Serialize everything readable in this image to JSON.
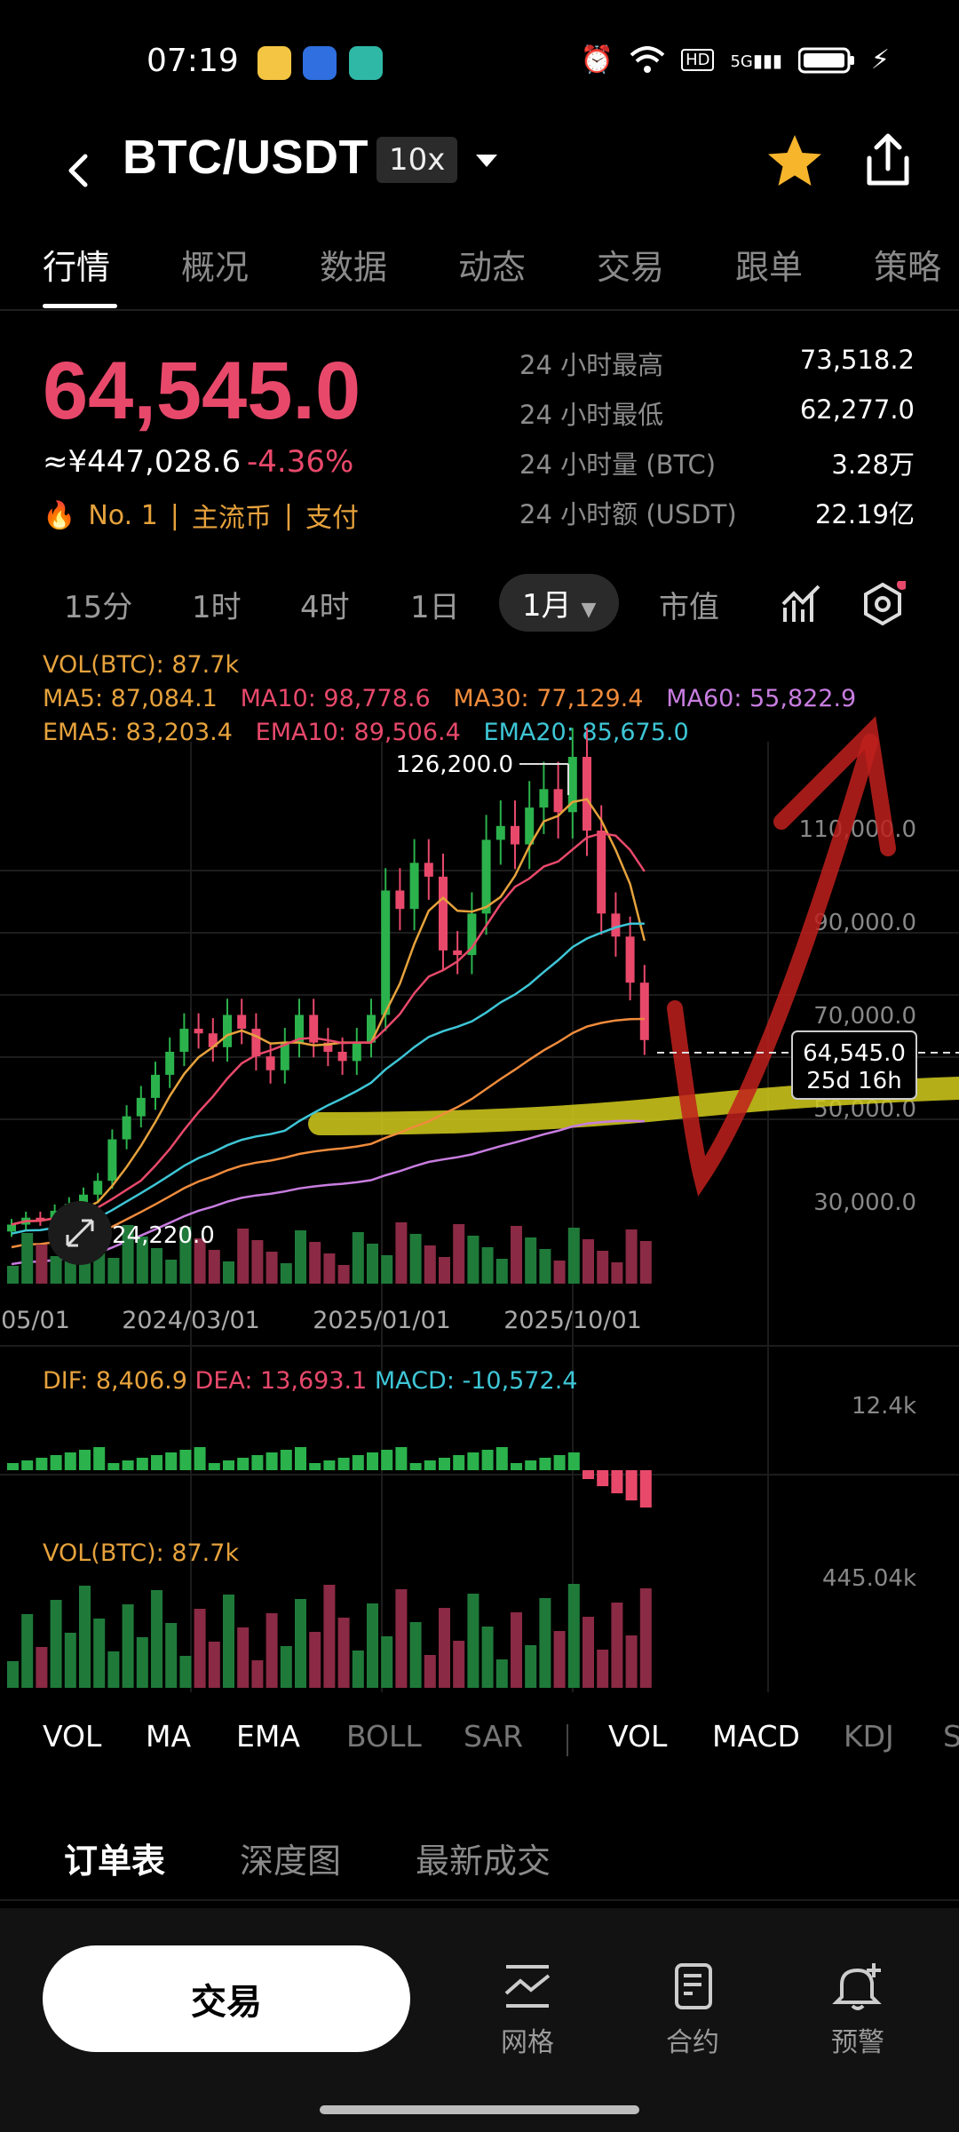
{
  "status_bar": {
    "time": "07:19",
    "network": "5G",
    "hd": "HD"
  },
  "header": {
    "pair": "BTC/USDT",
    "leverage": "10x"
  },
  "tabs": [
    "行情",
    "概况",
    "数据",
    "动态",
    "交易",
    "跟单",
    "策略"
  ],
  "ticker": {
    "last_price": "64,545.0",
    "cny": "≈¥447,028.6",
    "change": "-4.36%",
    "tags": [
      "No. 1",
      "主流币",
      "支付"
    ],
    "stats": [
      {
        "label": "24 小时最高",
        "value": "73,518.2"
      },
      {
        "label": "24 小时最低",
        "value": "62,277.0"
      },
      {
        "label": "24 小时量 (BTC)",
        "value": "3.28万"
      },
      {
        "label": "24 小时额 (USDT)",
        "value": "22.19亿"
      }
    ]
  },
  "timeframes": [
    "15分",
    "1时",
    "4时",
    "1日",
    "1月",
    "市值"
  ],
  "active_timeframe": "1月",
  "legend": {
    "vol": "VOL(BTC): 87.7k",
    "ma5": "MA5: 87,084.1",
    "ma10": "MA10: 98,778.6",
    "ma30": "MA30: 77,129.4",
    "ma60": "MA60: 55,822.9",
    "ema5": "EMA5: 83,203.4",
    "ema10": "EMA10: 89,506.4",
    "ema20": "EMA20: 85,675.0",
    "macd_dif": "DIF: 8,406.9",
    "macd_dea": "DEA: 13,693.1",
    "macd_val": "MACD: -10,572.4",
    "vol2": "VOL(BTC): 87.7k"
  },
  "chart_data": {
    "type": "candlestick",
    "y_axis_labels": [
      "110,000.0",
      "90,000.0",
      "70,000.0",
      "50,000.0",
      "30,000.0"
    ],
    "x_axis_labels": [
      "05/01",
      "2024/03/01",
      "2025/01/01",
      "2025/10/01"
    ],
    "high_marker": "126,200.0",
    "low_marker": "24,220.0",
    "current_price_label": "64,545.0",
    "countdown": "25d 16h",
    "macd_axis_label": "12.4k",
    "vol_axis_label": "445.04k",
    "ylim": [
      20000,
      135000
    ]
  },
  "indicator_tabs": [
    "VOL",
    "MA",
    "EMA",
    "BOLL",
    "SAR",
    "VOL",
    "MACD",
    "KDJ",
    "S"
  ],
  "order_tabs": [
    "订单表",
    "深度图",
    "最新成交"
  ],
  "bottom": {
    "trade": "交易",
    "grid": "网格",
    "contract": "合约",
    "alert": "预警"
  },
  "colors": {
    "up": "#2bb24c",
    "down": "#e8496b",
    "accent": "#e6a23c"
  }
}
